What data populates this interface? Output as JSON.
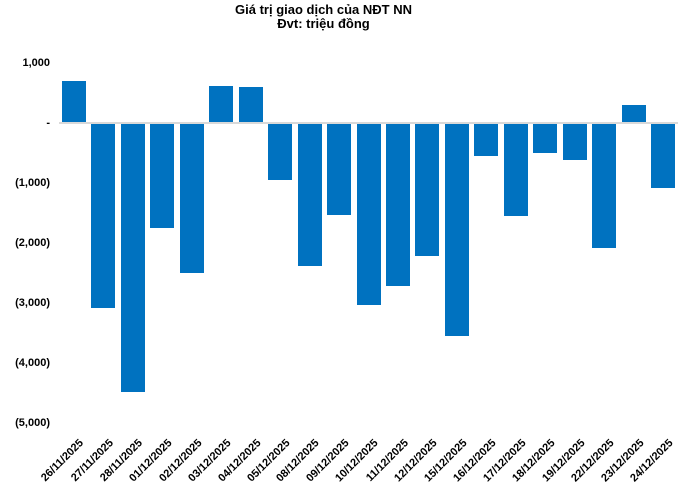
{
  "chart_data": {
    "type": "bar",
    "title": "Giá trị giao dịch của NĐT NN",
    "subtitle": "Đvt: triệu đồng",
    "xlabel": "",
    "ylabel": "",
    "unit": "triệu đồng",
    "categories": [
      "26/11/2025",
      "27/11/2025",
      "28/11/2025",
      "01/12/2025",
      "02/12/2025",
      "03/12/2025",
      "04/12/2025",
      "05/12/2025",
      "08/12/2025",
      "09/12/2025",
      "10/12/2025",
      "11/12/2025",
      "12/12/2025",
      "15/12/2025",
      "16/12/2025",
      "17/12/2025",
      "18/12/2025",
      "19/12/2025",
      "22/12/2025",
      "23/12/2025",
      "24/12/2025"
    ],
    "values": [
      690,
      -3090,
      -4490,
      -1760,
      -2510,
      610,
      590,
      -950,
      -2390,
      -1540,
      -3040,
      -2720,
      -2230,
      -3560,
      -550,
      -1560,
      -510,
      -630,
      -2090,
      290,
      -1090
    ],
    "ylim": [
      -5000,
      1000
    ],
    "y_ticks": [
      {
        "value": 1000,
        "label": "1,000"
      },
      {
        "value": 0,
        "label": "-"
      },
      {
        "value": -1000,
        "label": "(1,000)"
      },
      {
        "value": -2000,
        "label": "(2,000)"
      },
      {
        "value": -3000,
        "label": "(3,000)"
      },
      {
        "value": -4000,
        "label": "(4,000)"
      },
      {
        "value": -5000,
        "label": "(5,000)"
      }
    ],
    "grid": false,
    "legend": null,
    "bar_color": "#0072c0",
    "axis_line_color": "#d9d9d9",
    "text_color": "#000000"
  }
}
